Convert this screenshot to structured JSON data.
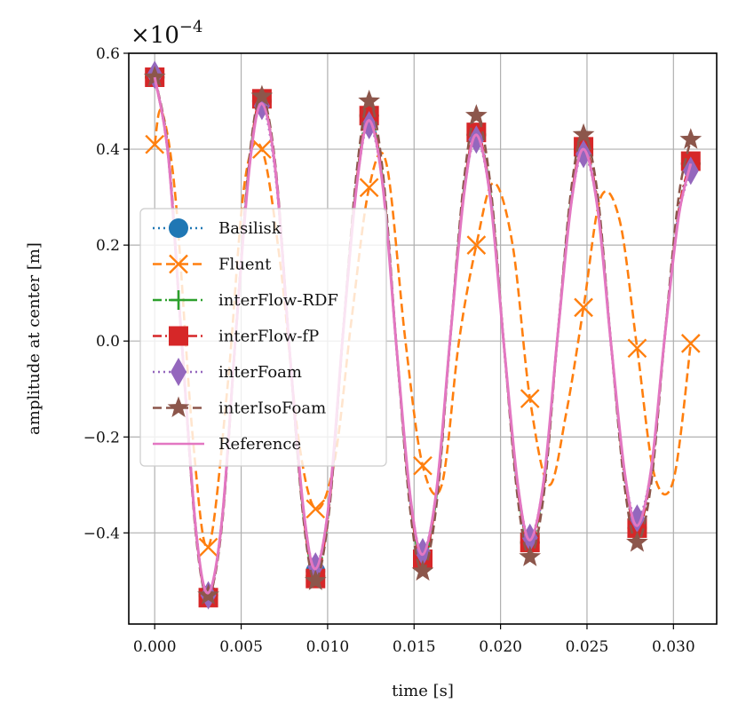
{
  "chart_data": {
    "type": "line",
    "xlabel": "time [s]",
    "ylabel": "amplitude at center [m]",
    "y_multiplier": "×10",
    "y_multiplier_exponent": "−4",
    "xlim": [
      -0.0015,
      0.0325
    ],
    "ylim": [
      -0.59,
      0.6
    ],
    "x_ticks": [
      0.0,
      0.005,
      0.01,
      0.015,
      0.02,
      0.025,
      0.03
    ],
    "x_tick_labels": [
      "0.000",
      "0.005",
      "0.010",
      "0.015",
      "0.020",
      "0.025",
      "0.030"
    ],
    "y_ticks": [
      -0.4,
      -0.2,
      0.0,
      0.2,
      0.4,
      0.6
    ],
    "y_tick_labels": [
      "−0.4",
      "−0.2",
      "0.0",
      "0.2",
      "0.4",
      "0.6"
    ],
    "grid": true,
    "legend_position": "center-left",
    "series": [
      {
        "name": "Basilisk",
        "color": "#1f77b4",
        "marker": "circle",
        "linestyle": "dotted",
        "x": [
          0.0,
          0.0008,
          0.0016,
          0.0024,
          0.0031,
          0.0039,
          0.0047,
          0.0055,
          0.0062,
          0.007,
          0.0078,
          0.0086,
          0.0093,
          0.0101,
          0.0109,
          0.0117,
          0.0124,
          0.0132,
          0.014,
          0.0148,
          0.0155,
          0.0163,
          0.0171,
          0.0179,
          0.0186,
          0.0194,
          0.0202,
          0.021,
          0.0217,
          0.0225,
          0.0233,
          0.0241,
          0.0248,
          0.0256,
          0.0264,
          0.0272,
          0.0279,
          0.0287,
          0.0295,
          0.0303,
          0.031
        ],
        "y": [
          0.55,
          0.38,
          -0.02,
          -0.4,
          -0.53,
          -0.37,
          0.02,
          0.38,
          0.5,
          0.35,
          -0.02,
          -0.36,
          -0.48,
          -0.33,
          0.02,
          0.34,
          0.47,
          0.33,
          -0.02,
          -0.34,
          -0.45,
          -0.32,
          0.01,
          0.32,
          0.43,
          0.31,
          -0.01,
          -0.31,
          -0.42,
          -0.3,
          0.01,
          0.3,
          0.4,
          0.29,
          -0.01,
          -0.29,
          -0.39,
          -0.28,
          0.01,
          0.27,
          0.37
        ]
      },
      {
        "name": "Fluent",
        "color": "#ff7f0e",
        "marker": "x",
        "linestyle": "dashed",
        "x": [
          0.0,
          0.0004,
          0.0012,
          0.0022,
          0.0031,
          0.0042,
          0.0052,
          0.0062,
          0.0073,
          0.0083,
          0.0093,
          0.0104,
          0.0114,
          0.0124,
          0.0134,
          0.0145,
          0.0155,
          0.0166,
          0.0176,
          0.0186,
          0.0196,
          0.0207,
          0.0217,
          0.0228,
          0.0238,
          0.0248,
          0.0258,
          0.0269,
          0.0279,
          0.0289,
          0.03,
          0.031
        ],
        "y": [
          0.41,
          0.48,
          0.3,
          -0.2,
          -0.43,
          -0.1,
          0.33,
          0.4,
          0.15,
          -0.2,
          -0.35,
          -0.25,
          0.05,
          0.32,
          0.37,
          0.0,
          -0.26,
          -0.3,
          0.0,
          0.2,
          0.33,
          0.2,
          -0.12,
          -0.3,
          -0.15,
          0.07,
          0.3,
          0.25,
          -0.015,
          -0.28,
          -0.29,
          -0.005
        ]
      },
      {
        "name": "interFlow-RDF",
        "color": "#2ca02c",
        "marker": "plus",
        "linestyle": "dashdot",
        "x": [
          0.0,
          0.0008,
          0.0016,
          0.0024,
          0.0031,
          0.0039,
          0.0047,
          0.0055,
          0.0062,
          0.007,
          0.0078,
          0.0086,
          0.0093,
          0.0101,
          0.0109,
          0.0117,
          0.0124,
          0.0132,
          0.014,
          0.0148,
          0.0155,
          0.0163,
          0.0171,
          0.0179,
          0.0186,
          0.0194,
          0.0202,
          0.021,
          0.0217,
          0.0225,
          0.0233,
          0.0241,
          0.0248,
          0.0256,
          0.0264,
          0.0272,
          0.0279,
          0.0287,
          0.0295,
          0.0303,
          0.031
        ],
        "y": [
          0.55,
          0.38,
          -0.02,
          -0.4,
          -0.53,
          -0.37,
          0.02,
          0.38,
          0.5,
          0.35,
          -0.02,
          -0.36,
          -0.49,
          -0.34,
          0.02,
          0.34,
          0.47,
          0.33,
          -0.02,
          -0.34,
          -0.46,
          -0.32,
          0.01,
          0.32,
          0.43,
          0.31,
          -0.01,
          -0.31,
          -0.42,
          -0.3,
          0.01,
          0.3,
          0.4,
          0.29,
          -0.01,
          -0.29,
          -0.39,
          -0.28,
          0.01,
          0.27,
          0.37
        ]
      },
      {
        "name": "interFlow-fP",
        "color": "#d62728",
        "marker": "square",
        "linestyle": "dashdot",
        "x": [
          0.0,
          0.0008,
          0.0016,
          0.0024,
          0.0031,
          0.0039,
          0.0047,
          0.0055,
          0.0062,
          0.007,
          0.0078,
          0.0086,
          0.0093,
          0.0101,
          0.0109,
          0.0117,
          0.0124,
          0.0132,
          0.014,
          0.0148,
          0.0155,
          0.0163,
          0.0171,
          0.0179,
          0.0186,
          0.0194,
          0.0202,
          0.021,
          0.0217,
          0.0225,
          0.0233,
          0.0241,
          0.0248,
          0.0256,
          0.0264,
          0.0272,
          0.0279,
          0.0287,
          0.0295,
          0.0303,
          0.031
        ],
        "y": [
          0.55,
          0.38,
          -0.02,
          -0.4,
          -0.535,
          -0.37,
          0.02,
          0.38,
          0.505,
          0.35,
          -0.02,
          -0.36,
          -0.495,
          -0.34,
          0.02,
          0.34,
          0.47,
          0.33,
          -0.02,
          -0.34,
          -0.455,
          -0.32,
          0.01,
          0.32,
          0.435,
          0.31,
          -0.01,
          -0.31,
          -0.42,
          -0.3,
          0.01,
          0.3,
          0.405,
          0.29,
          -0.01,
          -0.29,
          -0.39,
          -0.28,
          0.01,
          0.27,
          0.375
        ]
      },
      {
        "name": "interFoam",
        "color": "#9467bd",
        "marker": "diamond",
        "linestyle": "dotted",
        "x": [
          0.0,
          0.0008,
          0.0016,
          0.0024,
          0.0031,
          0.0039,
          0.0047,
          0.0055,
          0.0062,
          0.007,
          0.0078,
          0.0086,
          0.0093,
          0.0101,
          0.0109,
          0.0117,
          0.0124,
          0.0132,
          0.014,
          0.0148,
          0.0155,
          0.0163,
          0.0171,
          0.0179,
          0.0186,
          0.0194,
          0.0202,
          0.021,
          0.0217,
          0.0225,
          0.0233,
          0.0241,
          0.0248,
          0.0256,
          0.0264,
          0.0272,
          0.0279,
          0.0287,
          0.0295,
          0.0303,
          0.031
        ],
        "y": [
          0.555,
          0.38,
          -0.02,
          -0.4,
          -0.53,
          -0.37,
          0.02,
          0.37,
          0.49,
          0.34,
          -0.02,
          -0.35,
          -0.47,
          -0.33,
          0.02,
          0.33,
          0.45,
          0.32,
          -0.02,
          -0.33,
          -0.44,
          -0.31,
          0.01,
          0.31,
          0.42,
          0.3,
          -0.01,
          -0.3,
          -0.41,
          -0.29,
          0.01,
          0.29,
          0.39,
          0.28,
          -0.01,
          -0.28,
          -0.37,
          -0.27,
          0.01,
          0.26,
          0.355
        ]
      },
      {
        "name": "interIsoFoam",
        "color": "#8c564b",
        "marker": "star",
        "linestyle": "dashed",
        "x": [
          0.0,
          0.0008,
          0.0016,
          0.0024,
          0.0031,
          0.0039,
          0.0047,
          0.0055,
          0.0062,
          0.007,
          0.0078,
          0.0086,
          0.0093,
          0.0101,
          0.0109,
          0.0117,
          0.0124,
          0.0132,
          0.014,
          0.0148,
          0.0155,
          0.0163,
          0.0171,
          0.0179,
          0.0186,
          0.0194,
          0.0202,
          0.021,
          0.0217,
          0.0225,
          0.0233,
          0.0241,
          0.0248,
          0.0256,
          0.0264,
          0.0272,
          0.0279,
          0.0287,
          0.0295,
          0.0303,
          0.031
        ],
        "y": [
          0.55,
          0.39,
          -0.02,
          -0.41,
          -0.53,
          -0.38,
          0.02,
          0.39,
          0.51,
          0.36,
          -0.02,
          -0.37,
          -0.5,
          -0.35,
          0.02,
          0.36,
          0.5,
          0.35,
          -0.02,
          -0.36,
          -0.48,
          -0.34,
          0.01,
          0.34,
          0.47,
          0.33,
          -0.01,
          -0.33,
          -0.45,
          -0.32,
          0.01,
          0.32,
          0.43,
          0.31,
          -0.01,
          -0.31,
          -0.42,
          -0.3,
          0.01,
          0.3,
          0.42
        ]
      },
      {
        "name": "Reference",
        "color": "#e377c2",
        "marker": "none",
        "linestyle": "solid",
        "x": [
          0.0,
          0.0008,
          0.0016,
          0.0024,
          0.0031,
          0.0039,
          0.0047,
          0.0055,
          0.0062,
          0.007,
          0.0078,
          0.0086,
          0.0093,
          0.0101,
          0.0109,
          0.0117,
          0.0124,
          0.0132,
          0.014,
          0.0148,
          0.0155,
          0.0163,
          0.0171,
          0.0179,
          0.0186,
          0.0194,
          0.0202,
          0.021,
          0.0217,
          0.0225,
          0.0233,
          0.0241,
          0.0248,
          0.0256,
          0.0264,
          0.0272,
          0.0279,
          0.0287,
          0.0295,
          0.0303,
          0.031
        ],
        "y": [
          0.55,
          0.38,
          -0.02,
          -0.4,
          -0.525,
          -0.37,
          0.02,
          0.37,
          0.495,
          0.35,
          -0.02,
          -0.35,
          -0.475,
          -0.33,
          0.02,
          0.33,
          0.46,
          0.32,
          -0.02,
          -0.33,
          -0.445,
          -0.31,
          0.01,
          0.31,
          0.43,
          0.3,
          -0.01,
          -0.3,
          -0.415,
          -0.29,
          0.01,
          0.29,
          0.4,
          0.28,
          -0.01,
          -0.28,
          -0.385,
          -0.27,
          0.01,
          0.26,
          0.37
        ]
      }
    ],
    "marker_points": {
      "Fluent": {
        "x": [
          0.0,
          0.0031,
          0.0062,
          0.0093,
          0.0124,
          0.0155,
          0.0186,
          0.0217,
          0.0248,
          0.0279,
          0.031
        ],
        "y": [
          0.41,
          -0.43,
          0.4,
          -0.35,
          0.32,
          -0.26,
          0.2,
          -0.12,
          0.07,
          -0.015,
          -0.005
        ]
      }
    }
  }
}
